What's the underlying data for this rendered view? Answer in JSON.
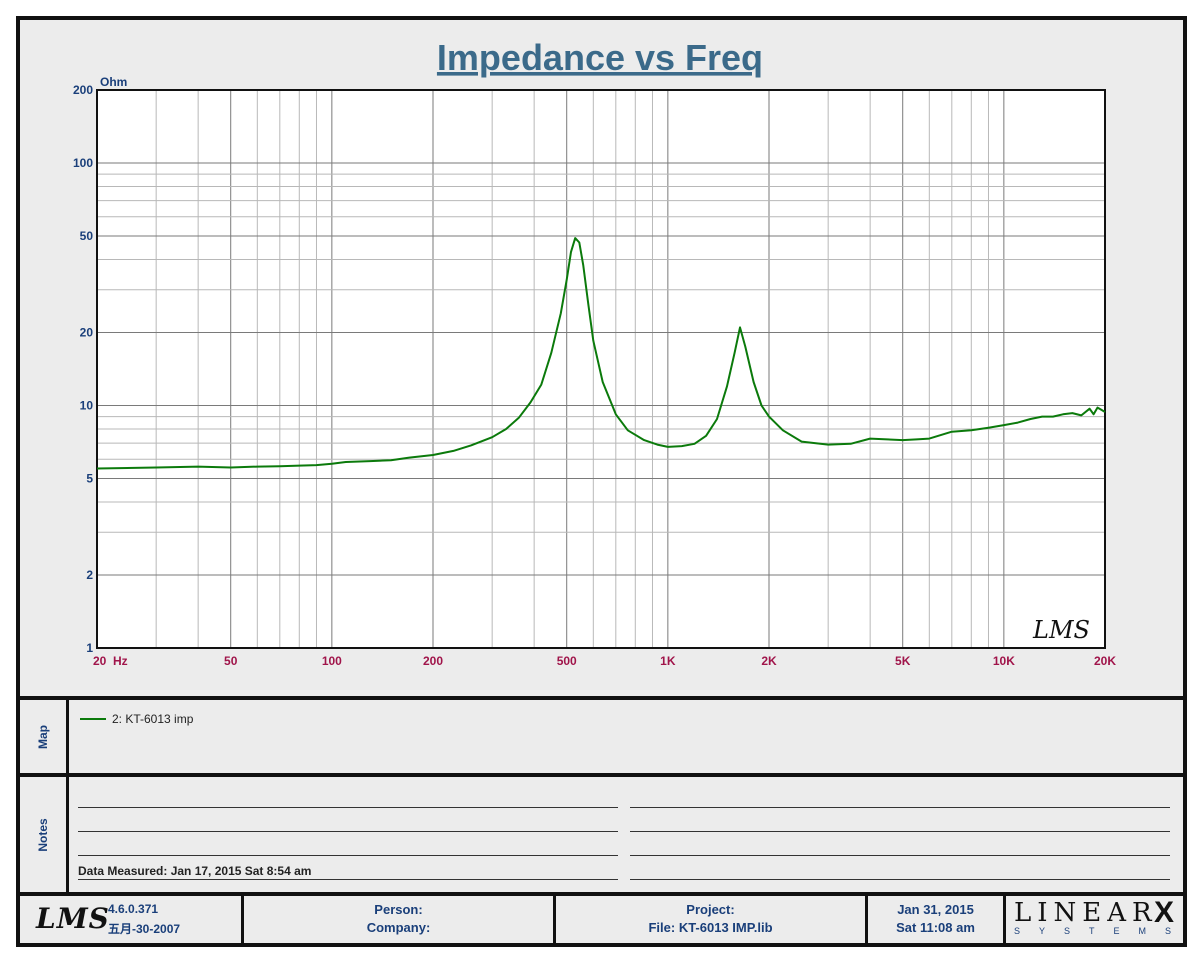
{
  "chart_data": {
    "type": "line",
    "title": "Impedance vs Freq",
    "ylabel": "Ohm",
    "xlabel": "Hz",
    "x_scale": "log",
    "y_scale": "log",
    "xlim": [
      20,
      20000
    ],
    "ylim": [
      1,
      200
    ],
    "grid": true,
    "x_tick_values": [
      20,
      50,
      100,
      200,
      500,
      1000,
      2000,
      5000,
      10000,
      20000
    ],
    "x_tick_labels": [
      "20",
      "50",
      "100",
      "200",
      "500",
      "1K",
      "2K",
      "5K",
      "10K",
      "20K"
    ],
    "x_unit_label": "Hz",
    "y_tick_values": [
      1,
      2,
      5,
      10,
      20,
      50,
      100,
      200
    ],
    "y_tick_labels": [
      "1",
      "2",
      "5",
      "10",
      "20",
      "50",
      "100",
      "200"
    ],
    "series": [
      {
        "name": "2: KT-6013 imp",
        "color": "#0b7a0b",
        "points": [
          [
            20,
            5.5
          ],
          [
            30,
            5.55
          ],
          [
            40,
            5.6
          ],
          [
            50,
            5.55
          ],
          [
            60,
            5.6
          ],
          [
            70,
            5.62
          ],
          [
            80,
            5.65
          ],
          [
            90,
            5.68
          ],
          [
            100,
            5.75
          ],
          [
            110,
            5.85
          ],
          [
            130,
            5.9
          ],
          [
            150,
            5.95
          ],
          [
            170,
            6.1
          ],
          [
            200,
            6.25
          ],
          [
            230,
            6.5
          ],
          [
            260,
            6.85
          ],
          [
            300,
            7.4
          ],
          [
            330,
            8.0
          ],
          [
            360,
            8.9
          ],
          [
            390,
            10.3
          ],
          [
            420,
            12.2
          ],
          [
            450,
            16.5
          ],
          [
            480,
            24.0
          ],
          [
            500,
            33.0
          ],
          [
            515,
            43.0
          ],
          [
            530,
            49.0
          ],
          [
            545,
            47.0
          ],
          [
            560,
            38.0
          ],
          [
            580,
            26.0
          ],
          [
            600,
            18.5
          ],
          [
            640,
            12.5
          ],
          [
            700,
            9.2
          ],
          [
            760,
            7.9
          ],
          [
            850,
            7.2
          ],
          [
            930,
            6.9
          ],
          [
            1000,
            6.75
          ],
          [
            1100,
            6.8
          ],
          [
            1200,
            6.95
          ],
          [
            1300,
            7.5
          ],
          [
            1400,
            8.8
          ],
          [
            1500,
            12.0
          ],
          [
            1580,
            16.5
          ],
          [
            1640,
            21.0
          ],
          [
            1700,
            17.5
          ],
          [
            1800,
            12.5
          ],
          [
            1900,
            10.0
          ],
          [
            2000,
            9.0
          ],
          [
            2200,
            7.9
          ],
          [
            2500,
            7.1
          ],
          [
            3000,
            6.9
          ],
          [
            3500,
            6.95
          ],
          [
            4000,
            7.3
          ],
          [
            4500,
            7.25
          ],
          [
            5000,
            7.2
          ],
          [
            5500,
            7.25
          ],
          [
            6000,
            7.3
          ],
          [
            7000,
            7.8
          ],
          [
            8000,
            7.9
          ],
          [
            9000,
            8.1
          ],
          [
            10000,
            8.3
          ],
          [
            11000,
            8.5
          ],
          [
            12000,
            8.8
          ],
          [
            13000,
            9.0
          ],
          [
            14000,
            9.0
          ],
          [
            15000,
            9.2
          ],
          [
            16000,
            9.3
          ],
          [
            17000,
            9.1
          ],
          [
            18000,
            9.7
          ],
          [
            18500,
            9.2
          ],
          [
            19000,
            9.8
          ],
          [
            19500,
            9.6
          ],
          [
            20000,
            9.4
          ]
        ]
      }
    ]
  },
  "map": {
    "label": "Map",
    "legend_entry": "2: KT-6013 imp",
    "legend_color": "#0b7a0b"
  },
  "notes": {
    "label": "Notes",
    "data_measured": "Data Measured: Jan 17, 2015  Sat  8:54 am"
  },
  "watermark": "LMS",
  "footer": {
    "logo": "LMS",
    "version": "4.6.0.371",
    "build_date": "五月-30-2007",
    "person_label": "Person:",
    "company_label": "Company:",
    "project_label": "Project:",
    "file_label": "File: KT-6013  IMP.lib",
    "date": "Jan 31, 2015",
    "time": "Sat 11:08 am",
    "brand": "LINEAR",
    "brand_x": "X",
    "brand_sub": "SYSTEMS"
  }
}
